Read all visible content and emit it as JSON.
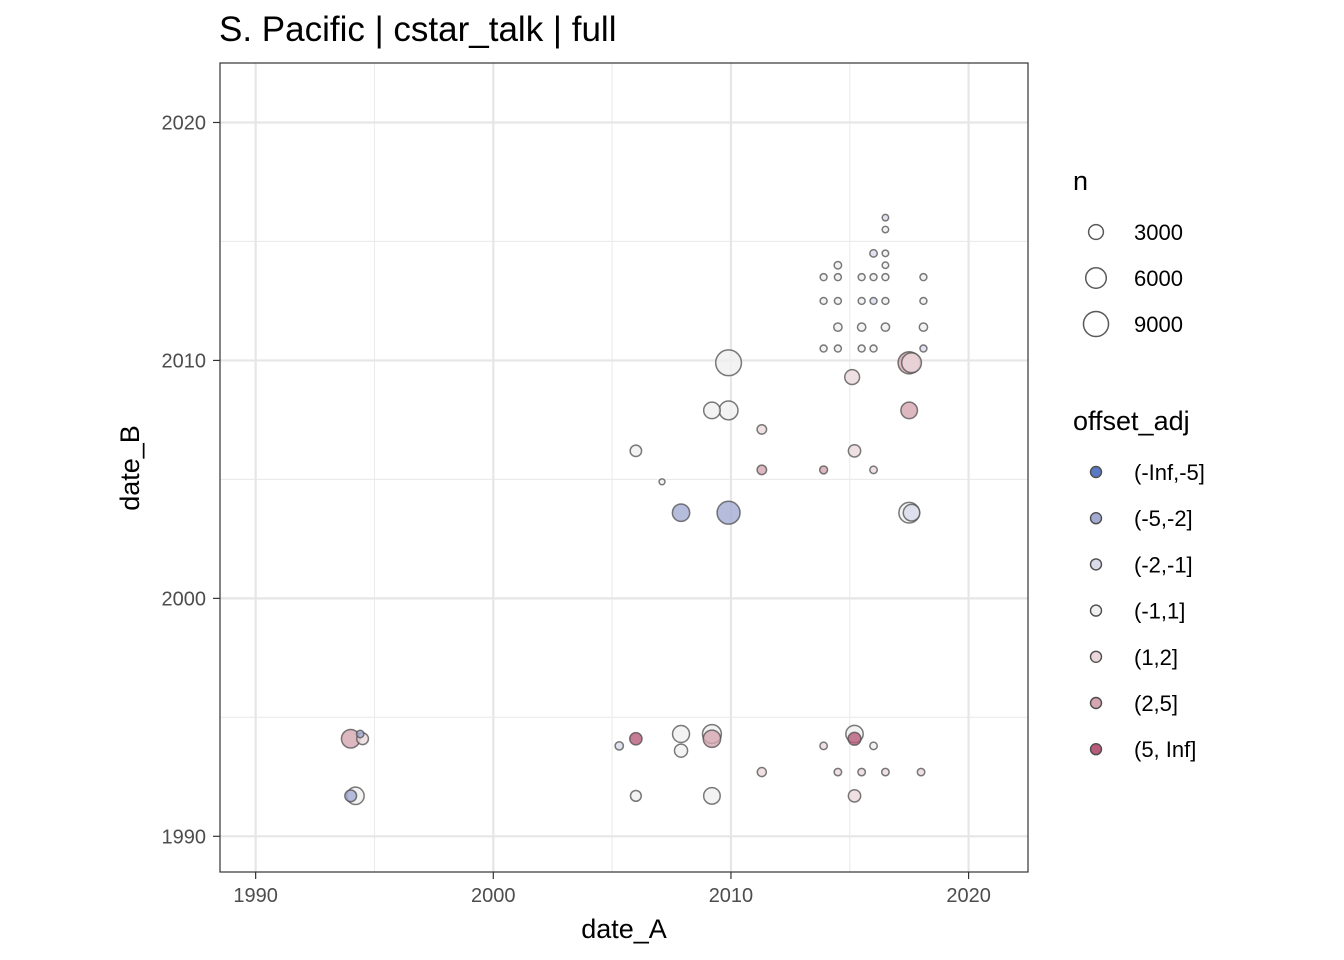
{
  "chart_data": {
    "type": "scatter",
    "title": "S. Pacific | cstar_talk | full",
    "xlabel": "date_A",
    "ylabel": "date_B",
    "xlim": [
      1988.5,
      2022.5
    ],
    "ylim": [
      1988.5,
      2022.5
    ],
    "x_ticks": [
      1990,
      2000,
      2010,
      2020
    ],
    "y_ticks": [
      1990,
      2000,
      2010,
      2020
    ],
    "x_tick_labels": [
      "1990",
      "2000",
      "2010",
      "2020"
    ],
    "y_tick_labels": [
      "1990",
      "2000",
      "2010",
      "2020"
    ],
    "grid": true,
    "size_legend": {
      "title": "n",
      "values": [
        3000,
        6000,
        9000
      ],
      "labels": [
        "3000",
        "6000",
        "9000"
      ]
    },
    "color_legend": {
      "title": "offset_adj",
      "categories": [
        "(-Inf,-5]",
        "(-5,-2]",
        "(-2,-1]",
        "(-1,1]",
        "(1,2]",
        "(2,5]",
        "(5, Inf]"
      ],
      "colors": [
        "#5a79c6",
        "#a3abd3",
        "#d9dbeb",
        "#f0f0f0",
        "#ebd8dc",
        "#d6a6b2",
        "#b95b7a"
      ]
    },
    "points": [
      {
        "x": 1994.2,
        "y": 1991.7,
        "n": 4200,
        "offset": "(-1,1]"
      },
      {
        "x": 1994.0,
        "y": 1991.7,
        "n": 1800,
        "offset": "(-5,-2]"
      },
      {
        "x": 1994.0,
        "y": 1994.1,
        "n": 4800,
        "offset": "(2,5]"
      },
      {
        "x": 1994.5,
        "y": 1994.1,
        "n": 1800,
        "offset": "(1,2]"
      },
      {
        "x": 1994.4,
        "y": 1994.3,
        "n": 600,
        "offset": "(-5,-2]"
      },
      {
        "x": 2005.3,
        "y": 1993.8,
        "n": 800,
        "offset": "(-2,-1]"
      },
      {
        "x": 2006.0,
        "y": 1994.1,
        "n": 2000,
        "offset": "(5, Inf]"
      },
      {
        "x": 2006.0,
        "y": 1991.7,
        "n": 1500,
        "offset": "(-1,1]"
      },
      {
        "x": 2006.0,
        "y": 2006.2,
        "n": 1700,
        "offset": "(-1,1]"
      },
      {
        "x": 2007.1,
        "y": 2004.9,
        "n": 300,
        "offset": "(-1,1]"
      },
      {
        "x": 2007.9,
        "y": 1994.3,
        "n": 4000,
        "offset": "(-1,1]"
      },
      {
        "x": 2007.9,
        "y": 1993.6,
        "n": 2300,
        "offset": "(-1,1]"
      },
      {
        "x": 2007.9,
        "y": 2003.6,
        "n": 4200,
        "offset": "(-5,-2]"
      },
      {
        "x": 2009.2,
        "y": 1994.3,
        "n": 5000,
        "offset": "(-1,1]"
      },
      {
        "x": 2009.2,
        "y": 1994.1,
        "n": 4200,
        "offset": "(2,5]"
      },
      {
        "x": 2009.2,
        "y": 1991.7,
        "n": 3800,
        "offset": "(-1,1]"
      },
      {
        "x": 2009.2,
        "y": 2007.9,
        "n": 3800,
        "offset": "(-1,1]"
      },
      {
        "x": 2009.9,
        "y": 2007.9,
        "n": 5000,
        "offset": "(-1,1]"
      },
      {
        "x": 2009.9,
        "y": 2009.9,
        "n": 9500,
        "offset": "(-1,1]"
      },
      {
        "x": 2009.9,
        "y": 2003.6,
        "n": 7500,
        "offset": "(-5,-2]"
      },
      {
        "x": 2011.3,
        "y": 1992.7,
        "n": 1000,
        "offset": "(1,2]"
      },
      {
        "x": 2011.3,
        "y": 2005.4,
        "n": 1100,
        "offset": "(2,5]"
      },
      {
        "x": 2011.3,
        "y": 2007.1,
        "n": 1100,
        "offset": "(1,2]"
      },
      {
        "x": 2013.9,
        "y": 1993.8,
        "n": 600,
        "offset": "(1,2]"
      },
      {
        "x": 2013.9,
        "y": 2005.4,
        "n": 700,
        "offset": "(2,5]"
      },
      {
        "x": 2014.5,
        "y": 1992.7,
        "n": 600,
        "offset": "(1,2]"
      },
      {
        "x": 2015.2,
        "y": 1994.3,
        "n": 4200,
        "offset": "(-1,1]"
      },
      {
        "x": 2015.2,
        "y": 1994.1,
        "n": 2200,
        "offset": "(5, Inf]"
      },
      {
        "x": 2015.2,
        "y": 1991.7,
        "n": 2000,
        "offset": "(1,2]"
      },
      {
        "x": 2015.5,
        "y": 1992.7,
        "n": 600,
        "offset": "(1,2]"
      },
      {
        "x": 2016.0,
        "y": 1993.8,
        "n": 600,
        "offset": "(-1,1]"
      },
      {
        "x": 2016.5,
        "y": 1992.7,
        "n": 600,
        "offset": "(1,2]"
      },
      {
        "x": 2018.0,
        "y": 1992.7,
        "n": 600,
        "offset": "(1,2]"
      },
      {
        "x": 2015.1,
        "y": 2009.3,
        "n": 3000,
        "offset": "(1,2]"
      },
      {
        "x": 2015.2,
        "y": 2006.2,
        "n": 2000,
        "offset": "(1,2]"
      },
      {
        "x": 2016.0,
        "y": 2005.4,
        "n": 600,
        "offset": "(1,2]"
      },
      {
        "x": 2017.5,
        "y": 2009.9,
        "n": 7000,
        "offset": "(2,5]"
      },
      {
        "x": 2017.6,
        "y": 2009.9,
        "n": 5500,
        "offset": "(1,2]"
      },
      {
        "x": 2017.5,
        "y": 2007.9,
        "n": 3800,
        "offset": "(2,5]"
      },
      {
        "x": 2017.5,
        "y": 2003.6,
        "n": 6000,
        "offset": "(-1,1]"
      },
      {
        "x": 2017.6,
        "y": 2003.6,
        "n": 3800,
        "offset": "(-2,-1]"
      },
      {
        "x": 2013.9,
        "y": 2010.5,
        "n": 500,
        "offset": "(-1,1]"
      },
      {
        "x": 2014.5,
        "y": 2010.5,
        "n": 500,
        "offset": "(-1,1]"
      },
      {
        "x": 2015.5,
        "y": 2010.5,
        "n": 500,
        "offset": "(-1,1]"
      },
      {
        "x": 2016.0,
        "y": 2010.5,
        "n": 500,
        "offset": "(-1,1]"
      },
      {
        "x": 2018.1,
        "y": 2010.5,
        "n": 500,
        "offset": "(-2,-1]"
      },
      {
        "x": 2014.5,
        "y": 2011.4,
        "n": 800,
        "offset": "(-1,1]"
      },
      {
        "x": 2015.5,
        "y": 2011.4,
        "n": 800,
        "offset": "(-1,1]"
      },
      {
        "x": 2016.5,
        "y": 2011.4,
        "n": 800,
        "offset": "(-1,1]"
      },
      {
        "x": 2018.1,
        "y": 2011.4,
        "n": 800,
        "offset": "(-1,1]"
      },
      {
        "x": 2013.9,
        "y": 2012.5,
        "n": 500,
        "offset": "(-1,1]"
      },
      {
        "x": 2014.5,
        "y": 2012.5,
        "n": 500,
        "offset": "(-1,1]"
      },
      {
        "x": 2015.5,
        "y": 2012.5,
        "n": 500,
        "offset": "(-1,1]"
      },
      {
        "x": 2016.0,
        "y": 2012.5,
        "n": 500,
        "offset": "(-2,-1]"
      },
      {
        "x": 2016.5,
        "y": 2012.5,
        "n": 500,
        "offset": "(-1,1]"
      },
      {
        "x": 2018.1,
        "y": 2012.5,
        "n": 500,
        "offset": "(-1,1]"
      },
      {
        "x": 2013.9,
        "y": 2013.5,
        "n": 500,
        "offset": "(-1,1]"
      },
      {
        "x": 2014.5,
        "y": 2013.5,
        "n": 500,
        "offset": "(-1,1]"
      },
      {
        "x": 2015.5,
        "y": 2013.5,
        "n": 500,
        "offset": "(-1,1]"
      },
      {
        "x": 2016.0,
        "y": 2013.5,
        "n": 500,
        "offset": "(-1,1]"
      },
      {
        "x": 2016.5,
        "y": 2013.5,
        "n": 500,
        "offset": "(-1,1]"
      },
      {
        "x": 2018.1,
        "y": 2013.5,
        "n": 500,
        "offset": "(-1,1]"
      },
      {
        "x": 2014.5,
        "y": 2014.0,
        "n": 600,
        "offset": "(-1,1]"
      },
      {
        "x": 2016.0,
        "y": 2014.5,
        "n": 600,
        "offset": "(-2,-1]"
      },
      {
        "x": 2016.5,
        "y": 2014.0,
        "n": 400,
        "offset": "(-1,1]"
      },
      {
        "x": 2016.5,
        "y": 2014.5,
        "n": 400,
        "offset": "(-1,1]"
      },
      {
        "x": 2016.5,
        "y": 2015.5,
        "n": 400,
        "offset": "(-1,1]"
      },
      {
        "x": 2016.5,
        "y": 2016.0,
        "n": 400,
        "offset": "(-2,-1]"
      }
    ]
  }
}
